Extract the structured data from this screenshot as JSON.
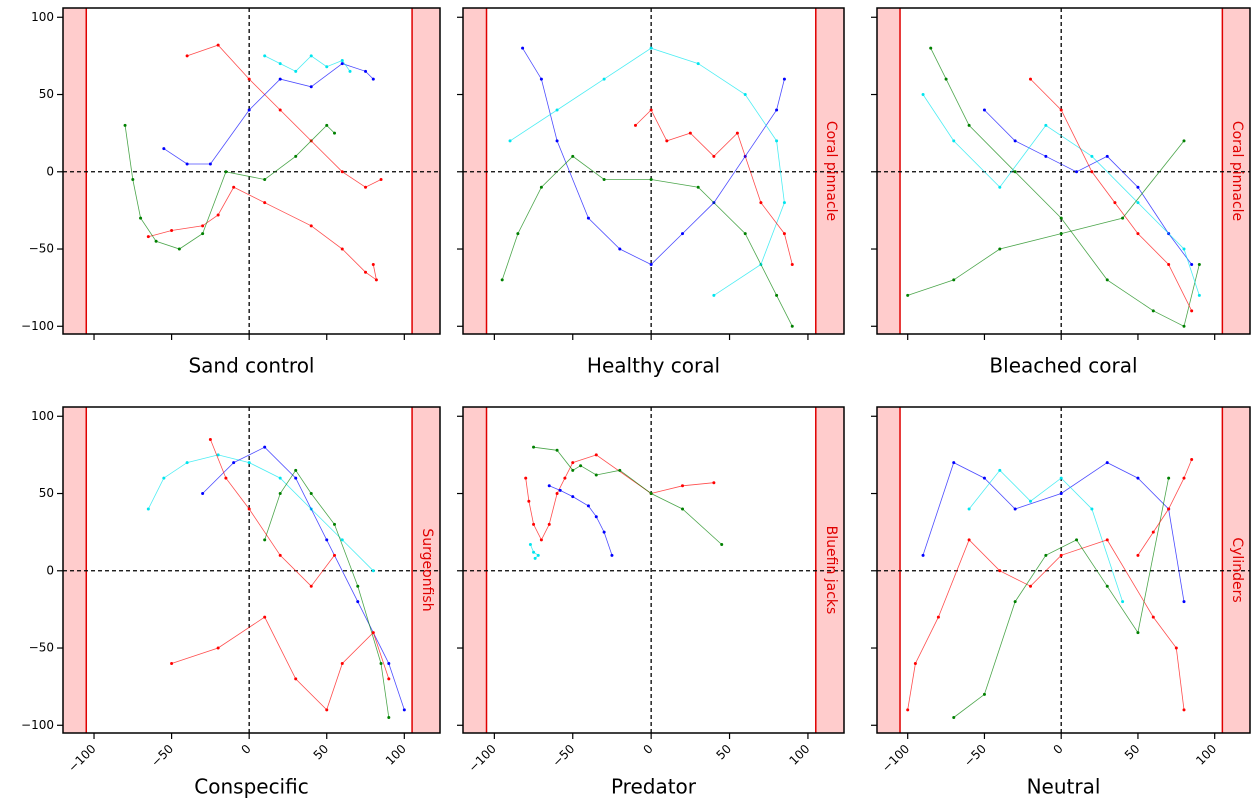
{
  "chart_data": [
    {
      "type": "line",
      "title": "Sand control",
      "xlim": [
        -120,
        123
      ],
      "ylim": [
        -105,
        106
      ],
      "xticks": [
        -100,
        -50,
        0,
        50,
        100
      ],
      "yticks": [
        {
          "value": 100,
          "label": "100"
        },
        {
          "value": 50,
          "label": "50"
        },
        {
          "value": 0,
          "label": "0"
        },
        {
          "value": -50,
          "label": "−50"
        },
        {
          "value": -100,
          "label": "−100"
        }
      ],
      "shaded_x": [
        [
          -120,
          -105
        ],
        [
          105,
          123
        ]
      ],
      "vlines": [
        0
      ],
      "hlines": [
        0
      ],
      "series": [
        {
          "color": "#ff0000",
          "x": [
            -65,
            -50,
            -30,
            -20,
            -10,
            10,
            40,
            60,
            75,
            82,
            80
          ],
          "y": [
            -42,
            -38,
            -35,
            -28,
            -10,
            -20,
            -35,
            -50,
            -65,
            -70,
            -60
          ]
        },
        {
          "color": "#ff0000",
          "x": [
            -40,
            -20,
            0,
            20,
            40,
            60,
            75,
            85
          ],
          "y": [
            75,
            82,
            60,
            40,
            20,
            0,
            -10,
            -5
          ]
        },
        {
          "color": "#0000ff",
          "x": [
            -55,
            -40,
            -25,
            0,
            20,
            40,
            60,
            75,
            80
          ],
          "y": [
            15,
            5,
            5,
            40,
            60,
            55,
            70,
            65,
            60
          ]
        },
        {
          "color": "#00e5ee",
          "x": [
            10,
            20,
            30,
            40,
            50,
            60,
            65
          ],
          "y": [
            75,
            70,
            65,
            75,
            68,
            72,
            65
          ]
        },
        {
          "color": "#008000",
          "x": [
            -80,
            -75,
            -70,
            -60,
            -45,
            -30,
            -15,
            10,
            30,
            50,
            55
          ],
          "y": [
            30,
            -5,
            -30,
            -45,
            -50,
            -40,
            0,
            -5,
            10,
            30,
            25
          ]
        }
      ]
    },
    {
      "type": "line",
      "title": "Healthy coral",
      "side_label": "Coral pinnacle",
      "xlim": [
        -120,
        123
      ],
      "ylim": [
        -105,
        106
      ],
      "xticks": [
        -100,
        -50,
        0,
        50,
        100
      ],
      "yticks": [
        100,
        50,
        0,
        -50,
        -100
      ],
      "shaded_x": [
        [
          -120,
          -105
        ],
        [
          105,
          123
        ]
      ],
      "vlines": [
        0
      ],
      "hlines": [
        0
      ],
      "series": [
        {
          "color": "#0000ff",
          "x": [
            -82,
            -70,
            -60,
            -40,
            -20,
            0,
            20,
            40,
            60,
            80,
            85
          ],
          "y": [
            80,
            60,
            20,
            -30,
            -50,
            -60,
            -40,
            -20,
            10,
            40,
            60
          ]
        },
        {
          "color": "#00e5ee",
          "x": [
            -90,
            -60,
            -30,
            0,
            30,
            60,
            80,
            85,
            70,
            40
          ],
          "y": [
            20,
            40,
            60,
            80,
            70,
            50,
            20,
            -20,
            -60,
            -80
          ]
        },
        {
          "color": "#ff0000",
          "x": [
            -10,
            0,
            10,
            25,
            40,
            55,
            70,
            85,
            90
          ],
          "y": [
            30,
            40,
            20,
            25,
            10,
            25,
            -20,
            -40,
            -60
          ]
        },
        {
          "color": "#008000",
          "x": [
            -95,
            -85,
            -70,
            -50,
            -30,
            0,
            30,
            60,
            80,
            90
          ],
          "y": [
            -70,
            -40,
            -10,
            10,
            -5,
            -5,
            -10,
            -40,
            -80,
            -100
          ]
        }
      ]
    },
    {
      "type": "line",
      "title": "Bleached coral",
      "side_label": "Coral pinnacle",
      "xlim": [
        -120,
        123
      ],
      "ylim": [
        -105,
        106
      ],
      "xticks": [
        -100,
        -50,
        0,
        50,
        100
      ],
      "yticks": [
        100,
        50,
        0,
        -50,
        -100
      ],
      "shaded_x": [
        [
          -120,
          -105
        ],
        [
          105,
          123
        ]
      ],
      "vlines": [
        0
      ],
      "hlines": [
        0
      ],
      "series": [
        {
          "color": "#008000",
          "x": [
            -85,
            -75,
            -60,
            -30,
            0,
            30,
            60,
            80,
            90
          ],
          "y": [
            80,
            60,
            30,
            0,
            -30,
            -70,
            -90,
            -100,
            -60
          ]
        },
        {
          "color": "#0000ff",
          "x": [
            -50,
            -30,
            -10,
            10,
            30,
            50,
            70,
            85
          ],
          "y": [
            40,
            20,
            10,
            0,
            10,
            -10,
            -40,
            -60
          ]
        },
        {
          "color": "#00e5ee",
          "x": [
            -90,
            -70,
            -40,
            -10,
            20,
            50,
            80,
            90
          ],
          "y": [
            50,
            20,
            -10,
            30,
            10,
            -20,
            -50,
            -80
          ]
        },
        {
          "color": "#ff0000",
          "x": [
            -20,
            0,
            20,
            35,
            50,
            70,
            85
          ],
          "y": [
            60,
            40,
            0,
            -20,
            -40,
            -60,
            -90
          ]
        },
        {
          "color": "#008000",
          "x": [
            -100,
            -70,
            -40,
            0,
            40,
            80
          ],
          "y": [
            -80,
            -70,
            -50,
            -40,
            -30,
            20
          ]
        }
      ]
    },
    {
      "type": "line",
      "title": "Conspecific",
      "side_label": "Surgeonfish",
      "xlim": [
        -120,
        123
      ],
      "ylim": [
        -105,
        106
      ],
      "xticks": [
        {
          "value": -100,
          "label": "−100"
        },
        {
          "value": -50,
          "label": "−50"
        },
        {
          "value": 0,
          "label": "0"
        },
        {
          "value": 50,
          "label": "50"
        },
        {
          "value": 100,
          "label": "100"
        }
      ],
      "yticks": [
        {
          "value": 100,
          "label": "100"
        },
        {
          "value": 50,
          "label": "50"
        },
        {
          "value": 0,
          "label": "0"
        },
        {
          "value": -50,
          "label": "−50"
        },
        {
          "value": -100,
          "label": "−100"
        }
      ],
      "shaded_x": [
        [
          -120,
          -105
        ],
        [
          105,
          123
        ]
      ],
      "vlines": [
        0
      ],
      "hlines": [
        0
      ],
      "series": [
        {
          "color": "#00e5ee",
          "x": [
            -65,
            -55,
            -40,
            -20,
            0,
            20,
            40,
            60,
            80
          ],
          "y": [
            40,
            60,
            70,
            75,
            70,
            60,
            40,
            20,
            0
          ]
        },
        {
          "color": "#0000ff",
          "x": [
            -30,
            -10,
            10,
            30,
            50,
            70,
            90,
            100
          ],
          "y": [
            50,
            70,
            80,
            60,
            20,
            -20,
            -60,
            -90
          ]
        },
        {
          "color": "#008000",
          "x": [
            10,
            20,
            30,
            40,
            55,
            70,
            85,
            90
          ],
          "y": [
            20,
            50,
            65,
            50,
            30,
            -10,
            -60,
            -95
          ]
        },
        {
          "color": "#ff0000",
          "x": [
            -50,
            -20,
            10,
            30,
            50,
            60,
            80,
            90
          ],
          "y": [
            -60,
            -50,
            -30,
            -70,
            -90,
            -60,
            -40,
            -70
          ]
        },
        {
          "color": "#ff0000",
          "x": [
            -25,
            -15,
            0,
            20,
            40,
            55
          ],
          "y": [
            85,
            60,
            40,
            10,
            -10,
            10
          ]
        }
      ]
    },
    {
      "type": "line",
      "title": "Predator",
      "side_label": "Bluefin jacks",
      "xlim": [
        -120,
        123
      ],
      "ylim": [
        -105,
        106
      ],
      "xticks": [
        {
          "value": -100,
          "label": "−100"
        },
        {
          "value": -50,
          "label": "−50"
        },
        {
          "value": 0,
          "label": "0"
        },
        {
          "value": 50,
          "label": "50"
        },
        {
          "value": 100,
          "label": "100"
        }
      ],
      "yticks": [
        100,
        50,
        0,
        -50,
        -100
      ],
      "shaded_x": [
        [
          -120,
          -105
        ],
        [
          105,
          123
        ]
      ],
      "vlines": [
        0
      ],
      "hlines": [
        0
      ],
      "series": [
        {
          "color": "#ff0000",
          "x": [
            -80,
            -78,
            -75,
            -70,
            -65,
            -60,
            -55,
            -50,
            -35,
            0,
            20,
            40
          ],
          "y": [
            60,
            45,
            30,
            20,
            30,
            50,
            60,
            70,
            75,
            50,
            55,
            57
          ]
        },
        {
          "color": "#0000ff",
          "x": [
            -65,
            -58,
            -50,
            -40,
            -35,
            -30,
            -25
          ],
          "y": [
            55,
            52,
            48,
            42,
            35,
            25,
            10
          ]
        },
        {
          "color": "#008000",
          "x": [
            -75,
            -60,
            -50,
            -45,
            -35,
            -20,
            0,
            20,
            45
          ],
          "y": [
            80,
            78,
            65,
            68,
            62,
            65,
            50,
            40,
            17
          ]
        },
        {
          "color": "#00e5ee",
          "x": [
            -77,
            -75,
            -72,
            -74
          ],
          "y": [
            17,
            12,
            10,
            8
          ]
        }
      ]
    },
    {
      "type": "line",
      "title": "Neutral",
      "side_label": "Cylinders",
      "xlim": [
        -120,
        123
      ],
      "ylim": [
        -105,
        106
      ],
      "xticks": [
        {
          "value": -100,
          "label": "−100"
        },
        {
          "value": -50,
          "label": "−50"
        },
        {
          "value": 0,
          "label": "0"
        },
        {
          "value": 50,
          "label": "50"
        },
        {
          "value": 100,
          "label": "100"
        }
      ],
      "yticks": [
        100,
        50,
        0,
        -50,
        -100
      ],
      "shaded_x": [
        [
          -120,
          -105
        ],
        [
          105,
          123
        ]
      ],
      "vlines": [
        0
      ],
      "hlines": [
        0
      ],
      "series": [
        {
          "color": "#0000ff",
          "x": [
            -90,
            -70,
            -50,
            -30,
            0,
            30,
            50,
            70,
            80
          ],
          "y": [
            10,
            70,
            60,
            40,
            50,
            70,
            60,
            40,
            -20
          ]
        },
        {
          "color": "#00e5ee",
          "x": [
            -60,
            -40,
            -20,
            0,
            20,
            40
          ],
          "y": [
            40,
            65,
            45,
            60,
            40,
            -20
          ]
        },
        {
          "color": "#ff0000",
          "x": [
            -100,
            -95,
            -80,
            -60,
            -40,
            -20,
            0,
            30,
            60,
            75,
            80
          ],
          "y": [
            -90,
            -60,
            -30,
            20,
            0,
            -10,
            10,
            20,
            -30,
            -50,
            -90
          ]
        },
        {
          "color": "#008000",
          "x": [
            -70,
            -50,
            -30,
            -10,
            10,
            30,
            50,
            70
          ],
          "y": [
            -95,
            -80,
            -20,
            10,
            20,
            -10,
            -40,
            60
          ]
        },
        {
          "color": "#ff0000",
          "x": [
            50,
            60,
            70,
            80,
            85
          ],
          "y": [
            10,
            25,
            40,
            60,
            72
          ]
        }
      ]
    }
  ]
}
